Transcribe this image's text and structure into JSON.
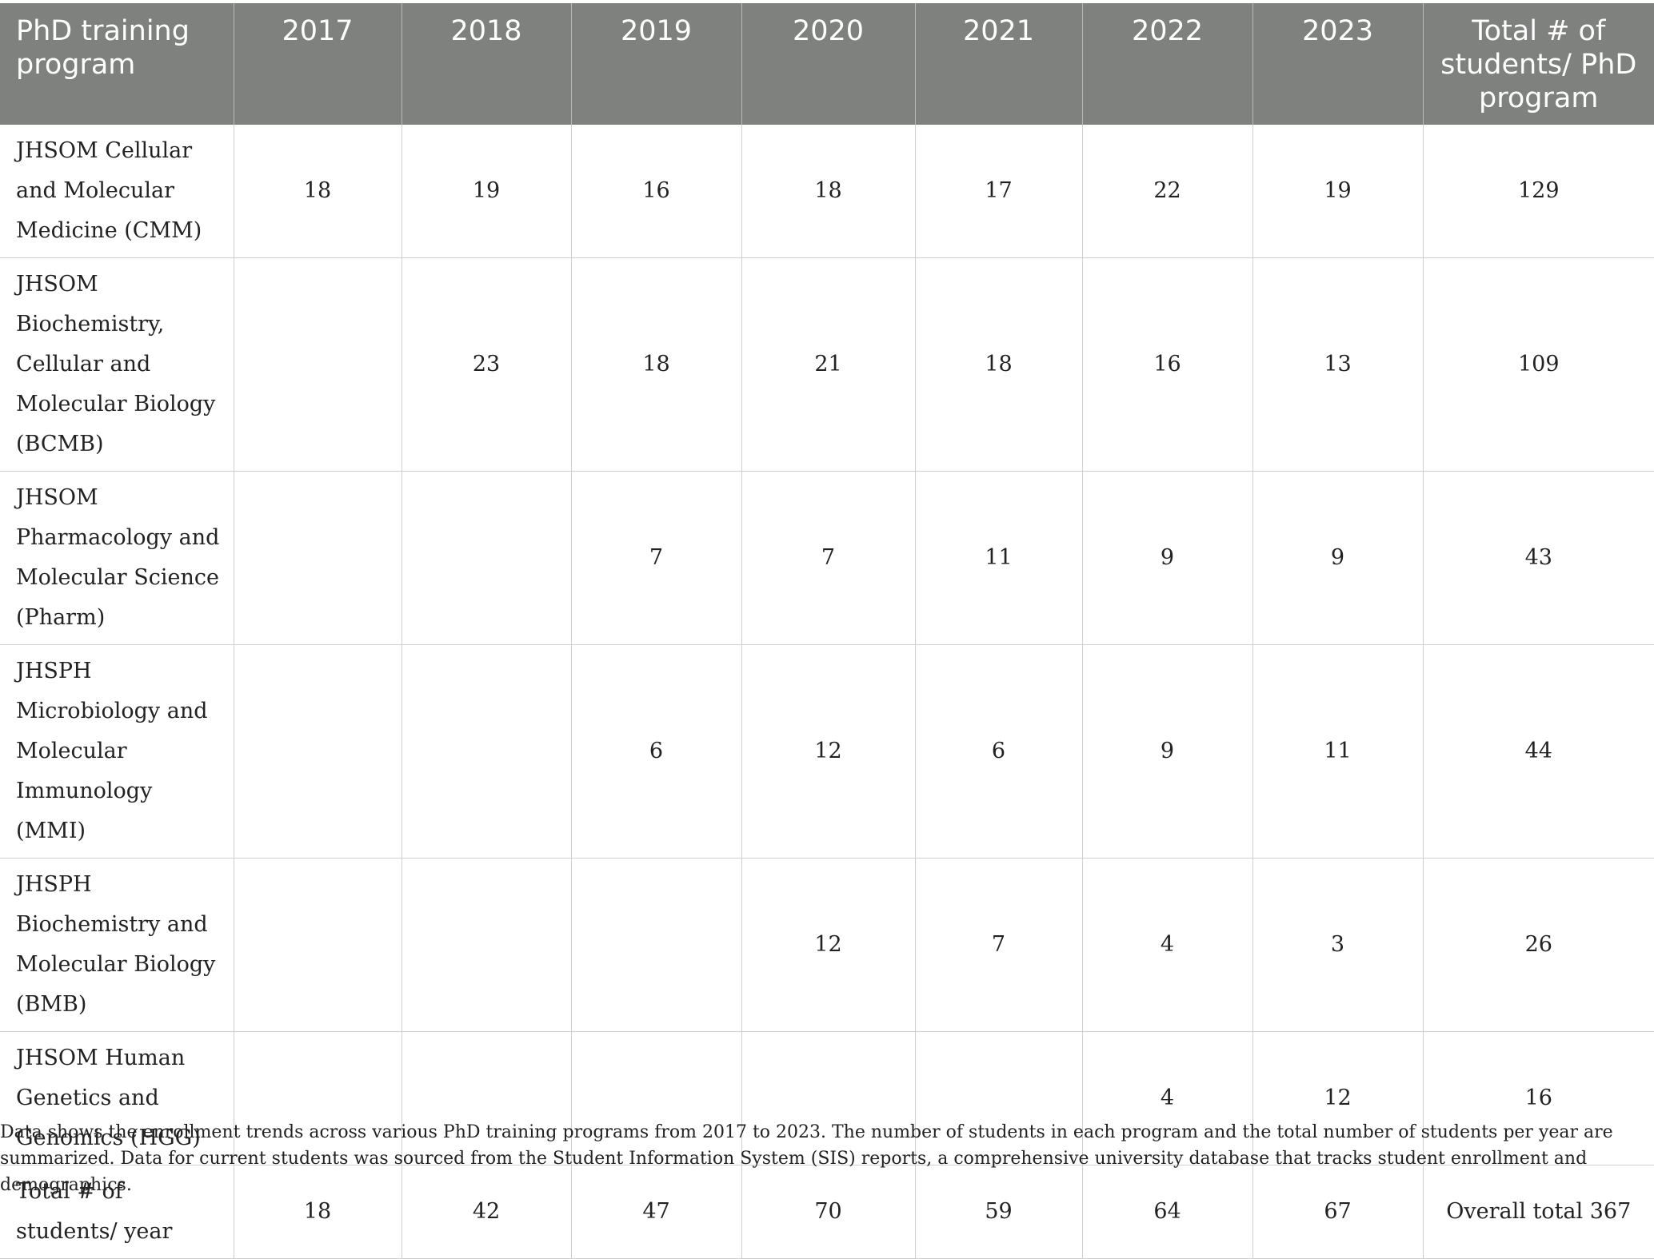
{
  "table": {
    "headers": [
      "PhD training program",
      "2017",
      "2018",
      "2019",
      "2020",
      "2021",
      "2022",
      "2023",
      "Total # of students/ PhD program"
    ],
    "rows": [
      [
        "JHSOM Cellular and Molecular Medicine (CMM)",
        "18",
        "19",
        "16",
        "18",
        "17",
        "22",
        "19",
        "129"
      ],
      [
        "JHSOM Biochemistry, Cellular and Molecular Biology (BCMB)",
        "",
        "23",
        "18",
        "21",
        "18",
        "16",
        "13",
        "109"
      ],
      [
        "JHSOM Pharmacology and Molecular Science (Pharm)",
        "",
        "",
        "7",
        "7",
        "11",
        "9",
        "9",
        "43"
      ],
      [
        "JHSPH Microbiology and Molecular Immunology (MMI)",
        "",
        "",
        "6",
        "12",
        "6",
        "9",
        "11",
        "44"
      ],
      [
        "JHSPH Biochemistry and Molecular Biology (BMB)",
        "",
        "",
        "",
        "12",
        "7",
        "4",
        "3",
        "26"
      ],
      [
        "JHSOM Human Genetics and Genomics (HGG)",
        "",
        "",
        "",
        "",
        "",
        "4",
        "12",
        "16"
      ],
      [
        "Total # of students/ year",
        "18",
        "42",
        "47",
        "70",
        "59",
        "64",
        "67",
        "Overall total 367"
      ]
    ]
  },
  "footnote": "Data shows the enrollment trends across various PhD training programs from 2017 to 2023. The number of students in each program and the total number of students per year are summarized. Data for current students was sourced from the Student Information System (SIS) reports, a comprehensive university database that tracks student enrollment and demographics."
}
